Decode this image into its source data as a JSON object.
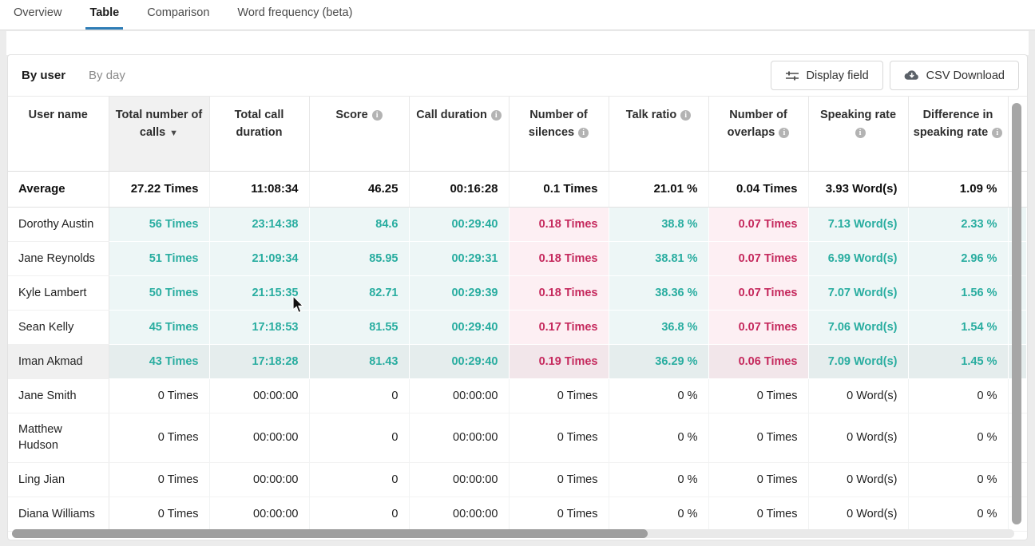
{
  "tabs": {
    "items": [
      {
        "label": "Overview",
        "active": false
      },
      {
        "label": "Table",
        "active": true
      },
      {
        "label": "Comparison",
        "active": false
      },
      {
        "label": "Word frequency (beta)",
        "active": false
      }
    ]
  },
  "toolbar": {
    "view_tabs": [
      {
        "label": "By user",
        "active": true
      },
      {
        "label": "By day",
        "active": false
      }
    ],
    "display_field_label": "Display field",
    "csv_download_label": "CSV Download"
  },
  "colors": {
    "accent_teal_text": "#29ada0",
    "accent_red_text": "#c5295d",
    "teal_cell_bg": "#edf6f6",
    "pink_cell_bg": "#fdeff3",
    "active_tab_underline": "#2e7db6",
    "sorted_header_bg": "#f1f1f1"
  },
  "table": {
    "columns": [
      {
        "label": "User name",
        "info": false,
        "sorted": false
      },
      {
        "label": "Total number of calls",
        "info": false,
        "sorted": true
      },
      {
        "label": "Total call duration",
        "info": false,
        "sorted": false
      },
      {
        "label": "Score",
        "info": true,
        "sorted": false
      },
      {
        "label": "Call duration",
        "info": true,
        "sorted": false
      },
      {
        "label": "Number of silences",
        "info": true,
        "sorted": false
      },
      {
        "label": "Talk ratio",
        "info": true,
        "sorted": false
      },
      {
        "label": "Number of overlaps",
        "info": true,
        "sorted": false
      },
      {
        "label": "Speaking rate",
        "info": true,
        "sorted": false
      },
      {
        "label": "Difference in speaking rate",
        "info": true,
        "sorted": false
      }
    ],
    "average_row": {
      "name": "Average",
      "cells": [
        {
          "v": "27.22 Times",
          "c": "plain"
        },
        {
          "v": "11:08:34",
          "c": "plain"
        },
        {
          "v": "46.25",
          "c": "plain"
        },
        {
          "v": "00:16:28",
          "c": "plain"
        },
        {
          "v": "0.1 Times",
          "c": "plain"
        },
        {
          "v": "21.01 %",
          "c": "plain"
        },
        {
          "v": "0.04 Times",
          "c": "plain"
        },
        {
          "v": "3.93 Word(s)",
          "c": "plain"
        },
        {
          "v": "1.09 %",
          "c": "plain"
        }
      ]
    },
    "rows": [
      {
        "name": "Dorothy Austin",
        "highlighted": false,
        "tall": false,
        "colored": true,
        "cells": [
          {
            "v": "56 Times",
            "c": "teal"
          },
          {
            "v": "23:14:38",
            "c": "teal"
          },
          {
            "v": "84.6",
            "c": "teal"
          },
          {
            "v": "00:29:40",
            "c": "teal"
          },
          {
            "v": "0.18 Times",
            "c": "red"
          },
          {
            "v": "38.8 %",
            "c": "teal"
          },
          {
            "v": "0.07 Times",
            "c": "red"
          },
          {
            "v": "7.13 Word(s)",
            "c": "teal"
          },
          {
            "v": "2.33 %",
            "c": "teal"
          }
        ]
      },
      {
        "name": "Jane Reynolds",
        "highlighted": false,
        "tall": false,
        "colored": true,
        "cells": [
          {
            "v": "51 Times",
            "c": "teal"
          },
          {
            "v": "21:09:34",
            "c": "teal"
          },
          {
            "v": "85.95",
            "c": "teal"
          },
          {
            "v": "00:29:31",
            "c": "teal"
          },
          {
            "v": "0.18 Times",
            "c": "red"
          },
          {
            "v": "38.81 %",
            "c": "teal"
          },
          {
            "v": "0.07 Times",
            "c": "red"
          },
          {
            "v": "6.99 Word(s)",
            "c": "teal"
          },
          {
            "v": "2.96 %",
            "c": "teal"
          }
        ]
      },
      {
        "name": "Kyle Lambert",
        "highlighted": false,
        "tall": false,
        "colored": true,
        "cells": [
          {
            "v": "50 Times",
            "c": "teal"
          },
          {
            "v": "21:15:35",
            "c": "teal"
          },
          {
            "v": "82.71",
            "c": "teal"
          },
          {
            "v": "00:29:39",
            "c": "teal"
          },
          {
            "v": "0.18 Times",
            "c": "red"
          },
          {
            "v": "38.36 %",
            "c": "teal"
          },
          {
            "v": "0.07 Times",
            "c": "red"
          },
          {
            "v": "7.07 Word(s)",
            "c": "teal"
          },
          {
            "v": "1.56 %",
            "c": "teal"
          }
        ]
      },
      {
        "name": "Sean Kelly",
        "highlighted": false,
        "tall": false,
        "colored": true,
        "cells": [
          {
            "v": "45 Times",
            "c": "teal"
          },
          {
            "v": "17:18:53",
            "c": "teal"
          },
          {
            "v": "81.55",
            "c": "teal"
          },
          {
            "v": "00:29:40",
            "c": "teal"
          },
          {
            "v": "0.17 Times",
            "c": "red"
          },
          {
            "v": "36.8 %",
            "c": "teal"
          },
          {
            "v": "0.07 Times",
            "c": "red"
          },
          {
            "v": "7.06 Word(s)",
            "c": "teal"
          },
          {
            "v": "1.54 %",
            "c": "teal"
          }
        ]
      },
      {
        "name": "Iman Akmad",
        "highlighted": true,
        "tall": false,
        "colored": true,
        "cells": [
          {
            "v": "43 Times",
            "c": "teal"
          },
          {
            "v": "17:18:28",
            "c": "teal"
          },
          {
            "v": "81.43",
            "c": "teal"
          },
          {
            "v": "00:29:40",
            "c": "teal"
          },
          {
            "v": "0.19 Times",
            "c": "red"
          },
          {
            "v": "36.29 %",
            "c": "teal"
          },
          {
            "v": "0.06 Times",
            "c": "red"
          },
          {
            "v": "7.09 Word(s)",
            "c": "teal"
          },
          {
            "v": "1.45 %",
            "c": "teal"
          }
        ]
      },
      {
        "name": "Jane Smith",
        "highlighted": false,
        "tall": false,
        "colored": false,
        "cells": [
          {
            "v": "0 Times",
            "c": "plain"
          },
          {
            "v": "00:00:00",
            "c": "plain"
          },
          {
            "v": "0",
            "c": "plain"
          },
          {
            "v": "00:00:00",
            "c": "plain"
          },
          {
            "v": "0 Times",
            "c": "plain"
          },
          {
            "v": "0 %",
            "c": "plain"
          },
          {
            "v": "0 Times",
            "c": "plain"
          },
          {
            "v": "0 Word(s)",
            "c": "plain"
          },
          {
            "v": "0 %",
            "c": "plain"
          }
        ]
      },
      {
        "name": "Matthew Hudson",
        "highlighted": false,
        "tall": true,
        "colored": false,
        "cells": [
          {
            "v": "0 Times",
            "c": "plain"
          },
          {
            "v": "00:00:00",
            "c": "plain"
          },
          {
            "v": "0",
            "c": "plain"
          },
          {
            "v": "00:00:00",
            "c": "plain"
          },
          {
            "v": "0 Times",
            "c": "plain"
          },
          {
            "v": "0 %",
            "c": "plain"
          },
          {
            "v": "0 Times",
            "c": "plain"
          },
          {
            "v": "0 Word(s)",
            "c": "plain"
          },
          {
            "v": "0 %",
            "c": "plain"
          }
        ]
      },
      {
        "name": "Ling Jian",
        "highlighted": false,
        "tall": false,
        "colored": false,
        "cells": [
          {
            "v": "0 Times",
            "c": "plain"
          },
          {
            "v": "00:00:00",
            "c": "plain"
          },
          {
            "v": "0",
            "c": "plain"
          },
          {
            "v": "00:00:00",
            "c": "plain"
          },
          {
            "v": "0 Times",
            "c": "plain"
          },
          {
            "v": "0 %",
            "c": "plain"
          },
          {
            "v": "0 Times",
            "c": "plain"
          },
          {
            "v": "0 Word(s)",
            "c": "plain"
          },
          {
            "v": "0 %",
            "c": "plain"
          }
        ]
      },
      {
        "name": "Diana Williams",
        "highlighted": false,
        "tall": false,
        "colored": false,
        "cells": [
          {
            "v": "0 Times",
            "c": "plain"
          },
          {
            "v": "00:00:00",
            "c": "plain"
          },
          {
            "v": "0",
            "c": "plain"
          },
          {
            "v": "00:00:00",
            "c": "plain"
          },
          {
            "v": "0 Times",
            "c": "plain"
          },
          {
            "v": "0 %",
            "c": "plain"
          },
          {
            "v": "0 Times",
            "c": "plain"
          },
          {
            "v": "0 Word(s)",
            "c": "plain"
          },
          {
            "v": "0 %",
            "c": "plain"
          }
        ]
      }
    ]
  }
}
